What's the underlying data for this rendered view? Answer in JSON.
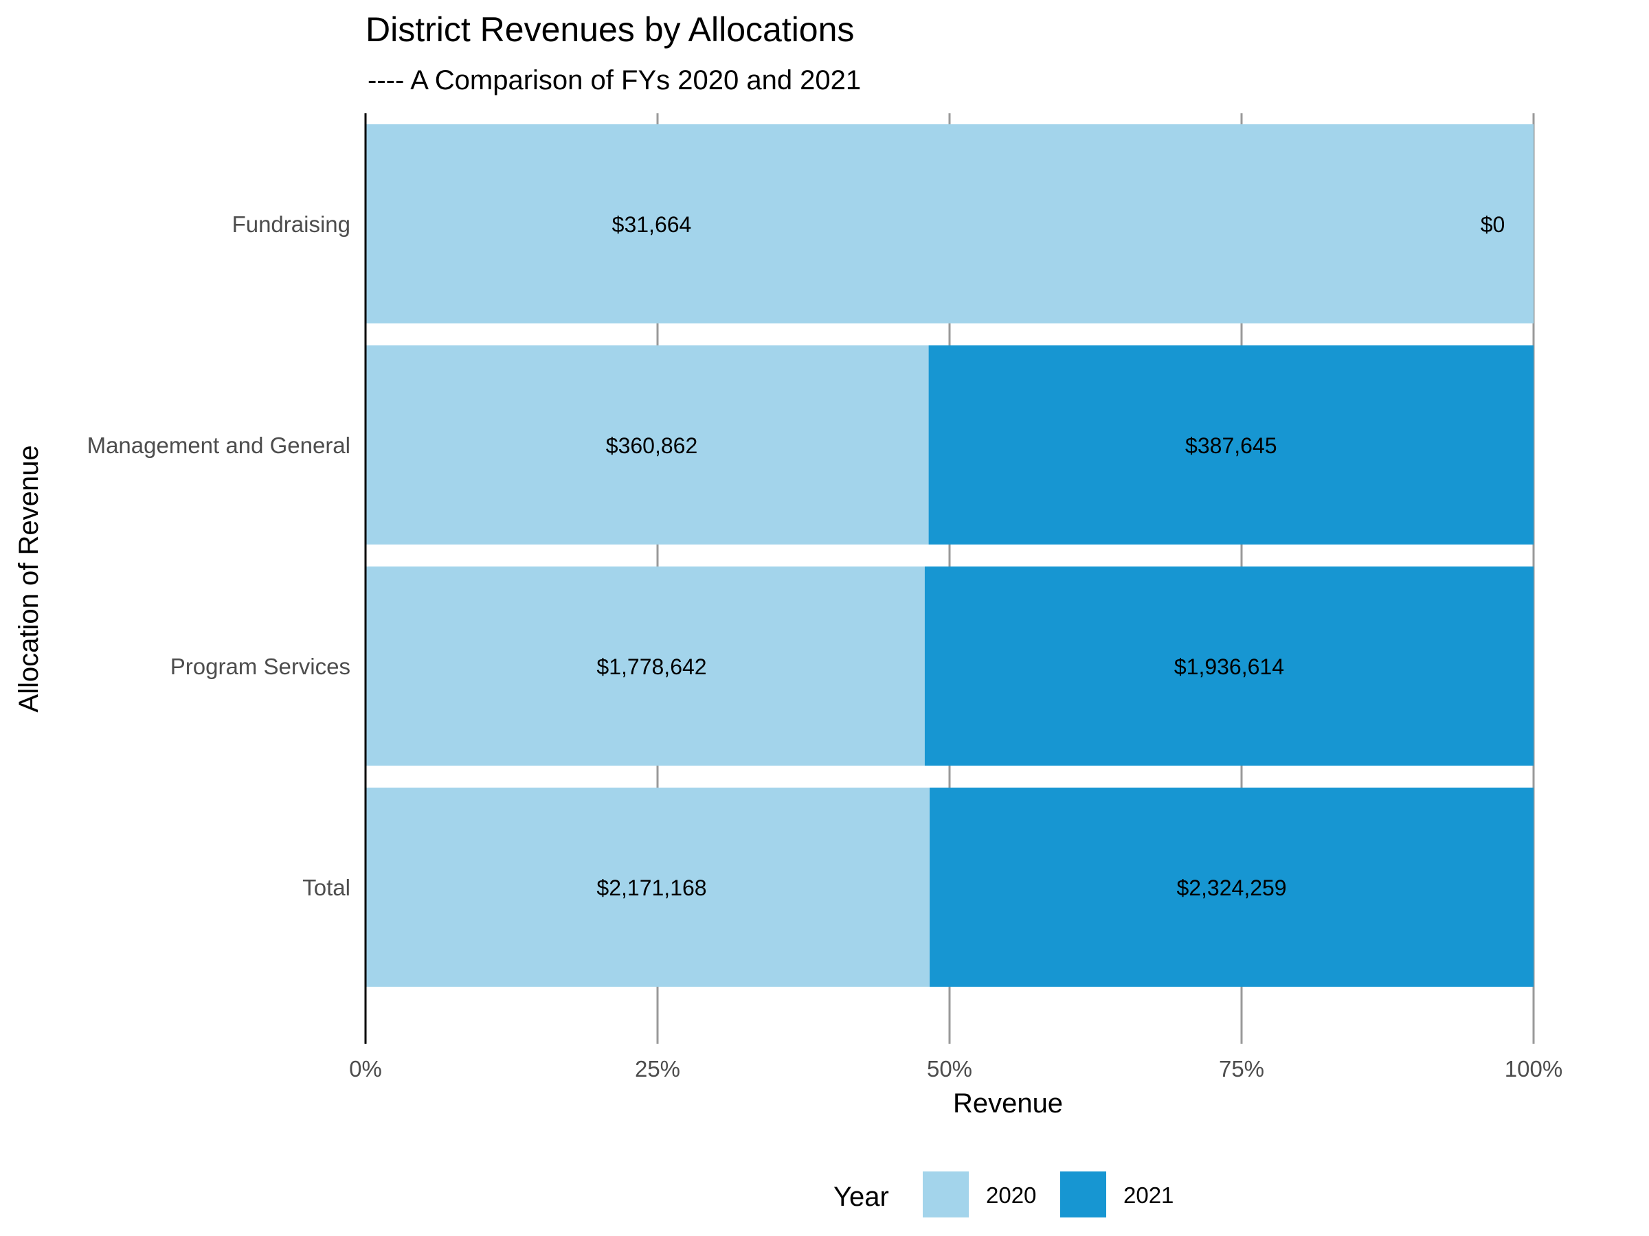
{
  "chart_data": {
    "type": "bar",
    "orientation": "horizontal",
    "stacked": "percent",
    "title": "District Revenues by Allocations",
    "subtitle": "---- A Comparison of FYs 2020 and 2021",
    "xlabel": "Revenue",
    "ylabel": "Allocation of Revenue",
    "xlim": [
      0,
      1
    ],
    "x_ticks": [
      "0%",
      "25%",
      "50%",
      "75%",
      "100%"
    ],
    "grid": "vertical-major",
    "categories": [
      "Fundraising",
      "Management and General",
      "Program Services",
      "Total"
    ],
    "series": [
      {
        "name": "2020",
        "color": "#a3d4eb",
        "values": [
          31664,
          360862,
          1778642,
          2171168
        ],
        "labels": [
          "$31,664",
          "$360,862",
          "$1,778,642",
          "$2,171,168"
        ]
      },
      {
        "name": "2021",
        "color": "#1796d2",
        "values": [
          0,
          387645,
          1936614,
          2324259
        ],
        "labels": [
          "$0",
          "$387,645",
          "$1,936,614",
          "$2,324,259"
        ]
      }
    ],
    "legend": {
      "title": "Year",
      "position": "bottom"
    }
  }
}
